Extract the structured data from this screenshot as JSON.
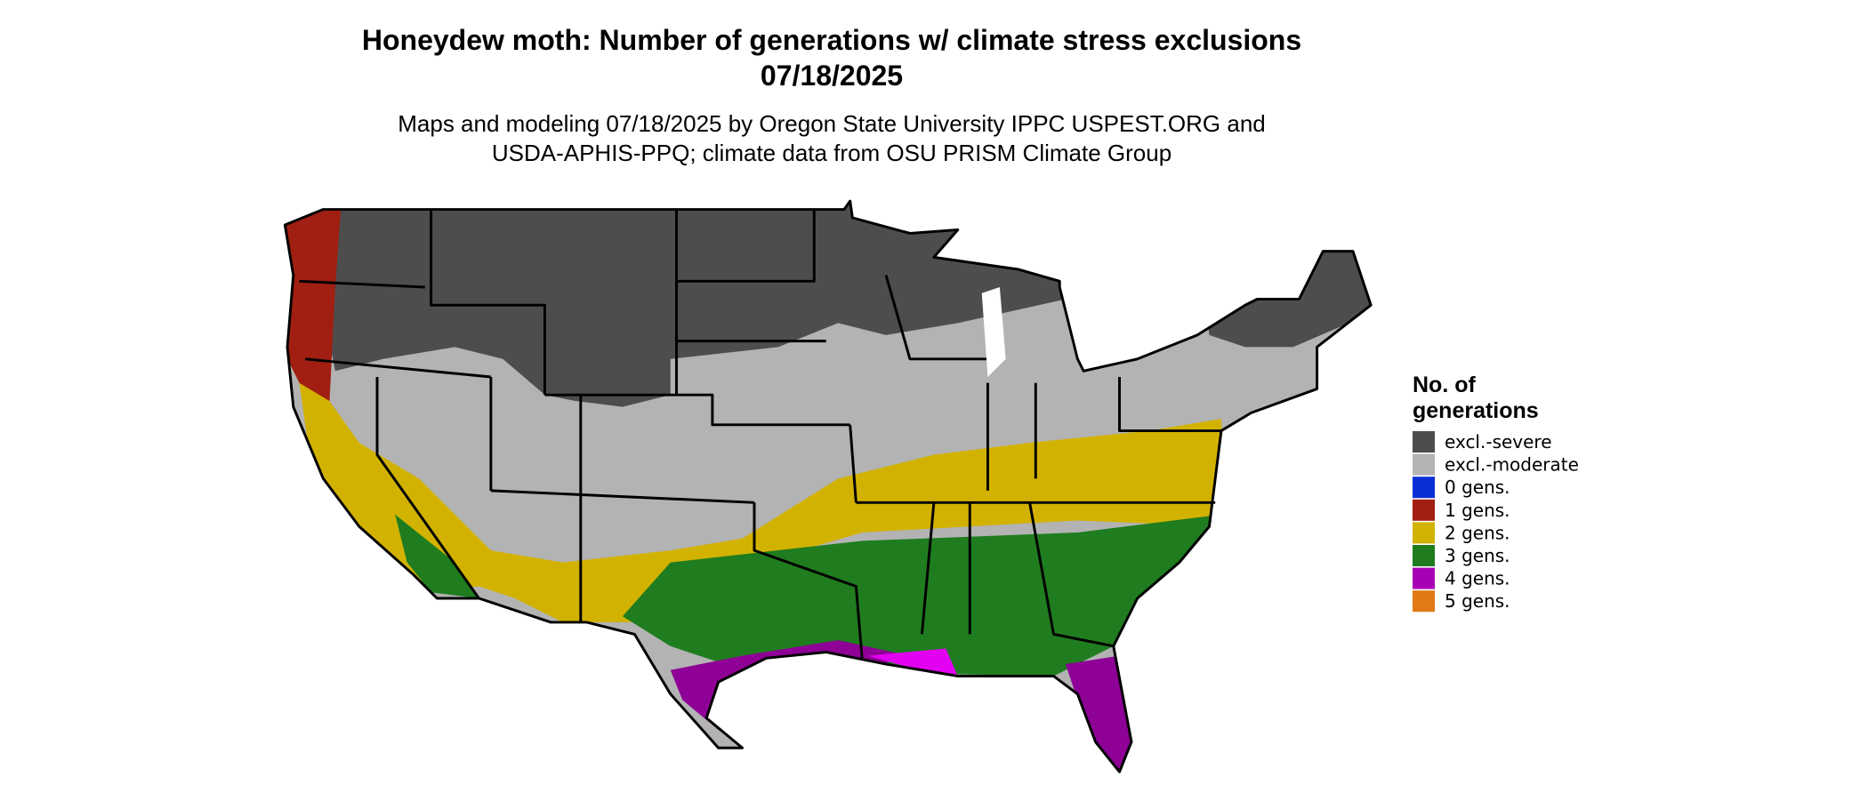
{
  "title": "Honeydew moth: Number of generations w/ climate stress exclusions",
  "date": "07/18/2025",
  "subtitle": [
    "Maps and modeling 07/18/2025 by Oregon State University IPPC USPEST.ORG and",
    "USDA-APHIS-PPQ; climate data from OSU PRISM Climate Group"
  ],
  "legend": {
    "title": [
      "No. of",
      "generations"
    ],
    "items": [
      {
        "label": "excl.-severe",
        "color": "#4d4d4d"
      },
      {
        "label": "excl.-moderate",
        "color": "#b3b3b3"
      },
      {
        "label": "0 gens.",
        "color": "#0a2fd6"
      },
      {
        "label": "1 gens.",
        "color": "#a01f12"
      },
      {
        "label": "2 gens.",
        "color": "#d2b200"
      },
      {
        "label": "3 gens.",
        "color": "#1f7d1f"
      },
      {
        "label": "4 gens.",
        "color": "#a800b4"
      },
      {
        "label": "5 gens.",
        "color": "#e07a14"
      }
    ]
  }
}
